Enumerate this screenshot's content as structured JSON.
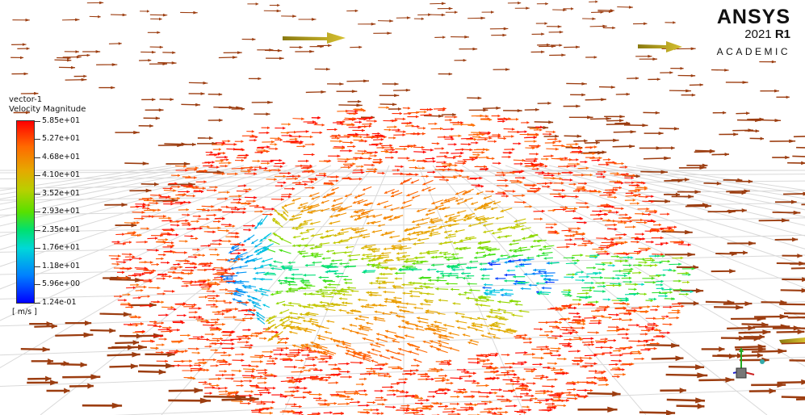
{
  "brand": {
    "name": "ANSYS",
    "year": "2021",
    "release": "R1",
    "edition": "ACADEMIC"
  },
  "legend": {
    "title": "vector-1",
    "variable": "Velocity Magnitude",
    "units": "[ m/s ]",
    "labels": [
      "5.85e+01",
      "5.27e+01",
      "4.68e+01",
      "4.10e+01",
      "3.52e+01",
      "2.93e+01",
      "2.35e+01",
      "1.76e+01",
      "1.18e+01",
      "5.96e+00",
      "1.24e-01"
    ]
  },
  "colors": {
    "arrow_free_stream": "#9c3d10",
    "arrow_highlight": "#b8a21c",
    "grid": "#d9d9d9",
    "axis_y": "#22aa22",
    "axis_x": "#cc2222",
    "axis_z": "#2222cc"
  },
  "icons": {
    "triad": "axis-triad-icon"
  }
}
